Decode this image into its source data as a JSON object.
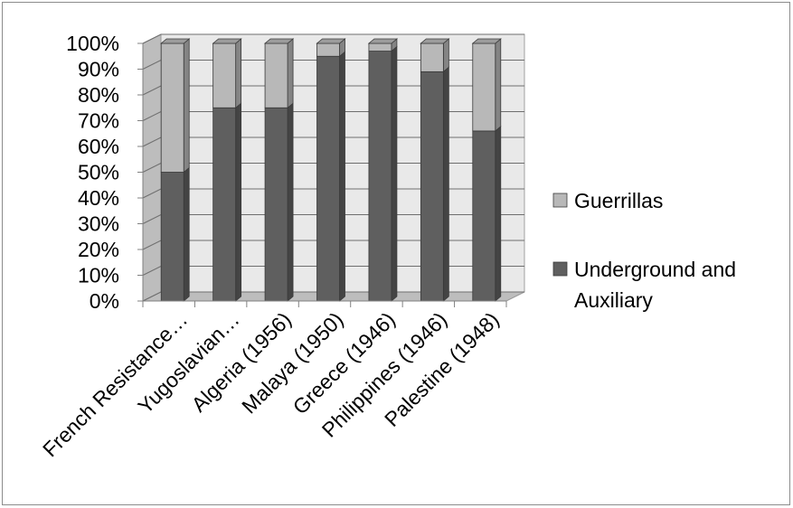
{
  "chart_data": {
    "type": "bar",
    "stacked": true,
    "percent": true,
    "three_d": true,
    "categories": [
      "French Resistance…",
      "Yugoslavian…",
      "Algeria (1956)",
      "Malaya (1950)",
      "Greece (1946)",
      "Philippines (1946)",
      "Palestine (1948)"
    ],
    "series": [
      {
        "name": "Underground and Auxiliary",
        "color": "#5f5f5f",
        "values": [
          50,
          75,
          75,
          95,
          97,
          89,
          66
        ]
      },
      {
        "name": "Guerrillas",
        "color": "#b8b8b8",
        "values": [
          50,
          25,
          25,
          5,
          3,
          11,
          34
        ]
      }
    ],
    "ylim": [
      0,
      100
    ],
    "yticks": [
      "0%",
      "10%",
      "20%",
      "30%",
      "40%",
      "50%",
      "60%",
      "70%",
      "80%",
      "90%",
      "100%"
    ],
    "grid": true,
    "legend_position": "right",
    "legend": [
      {
        "label": "Guerrillas",
        "color": "#b8b8b8"
      },
      {
        "label": "Underground and Auxiliary",
        "color": "#5f5f5f"
      }
    ],
    "title": "",
    "xlabel": "",
    "ylabel": ""
  }
}
